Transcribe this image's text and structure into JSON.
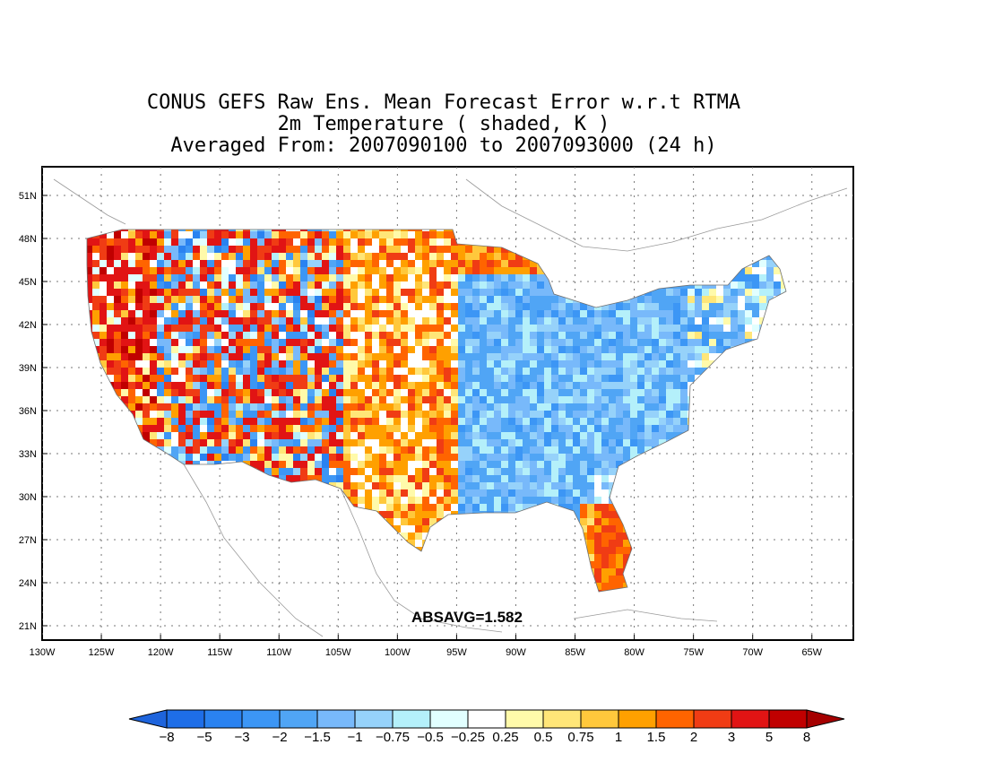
{
  "title": {
    "line1": "CONUS GEFS Raw Ens. Mean Forecast Error w.r.t RTMA",
    "line2": "2m Temperature ( shaded, K )",
    "line3": "Averaged From: 2007090100 to 2007093000 (24 h)"
  },
  "map": {
    "lat_labels": [
      "51N",
      "48N",
      "45N",
      "42N",
      "39N",
      "36N",
      "33N",
      "30N",
      "27N",
      "24N",
      "21N"
    ],
    "lon_labels": [
      "130W",
      "125W",
      "120W",
      "115W",
      "110W",
      "105W",
      "100W",
      "95W",
      "90W",
      "85W",
      "80W",
      "75W",
      "70W",
      "65W"
    ],
    "lon_range": [
      -130,
      -61.5
    ],
    "lat_range": [
      20,
      53
    ],
    "absavg": "ABSAVG=1.582"
  },
  "colorbar": {
    "labels": [
      "−8",
      "−5",
      "−3",
      "−2",
      "−1.5",
      "−1",
      "−0.75",
      "−0.5",
      "−0.25",
      "0.25",
      "0.5",
      "0.75",
      "1",
      "1.5",
      "2",
      "3",
      "5",
      "8"
    ],
    "colors": [
      "#1e6ee8",
      "#2a82f0",
      "#3c96f5",
      "#50a5f5",
      "#78b9fa",
      "#96d2fa",
      "#b4f0fa",
      "#e1ffff",
      "#ffffff",
      "#fffaaa",
      "#ffe678",
      "#ffc83c",
      "#ffa000",
      "#ff6400",
      "#f03c14",
      "#e11414",
      "#c00000"
    ],
    "low_extend_color": "#1e64dc",
    "high_extend_color": "#a50000"
  }
}
